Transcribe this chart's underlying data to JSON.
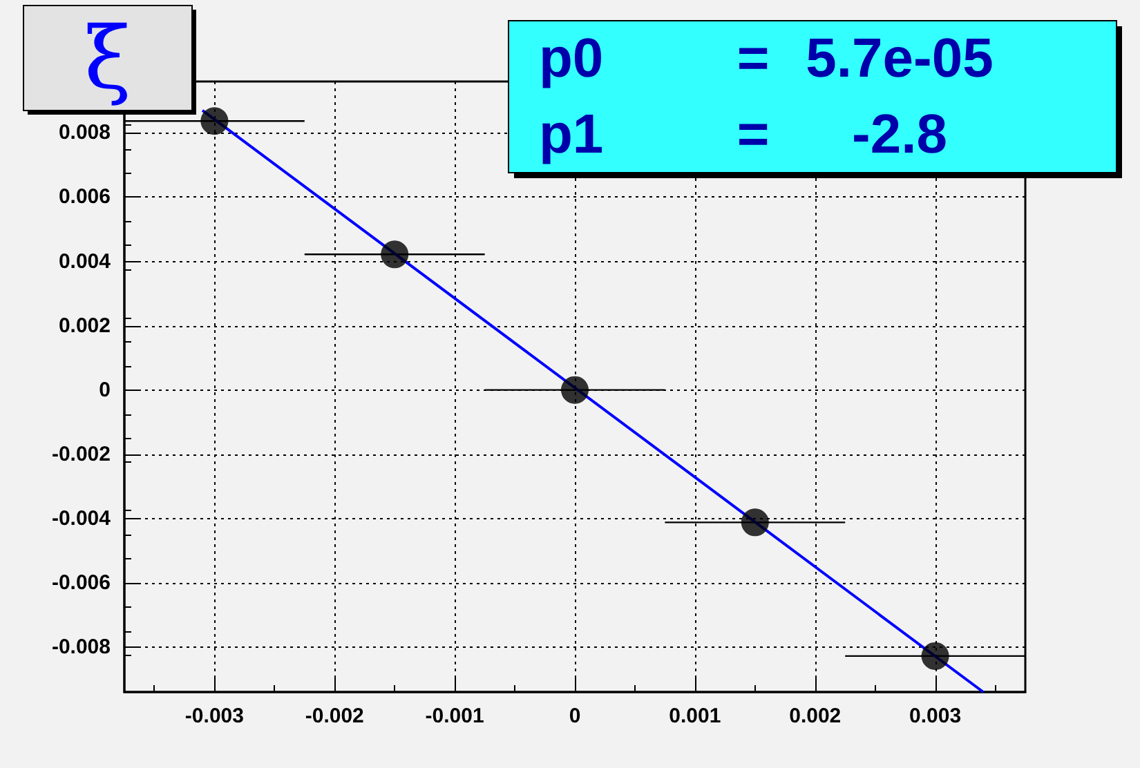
{
  "chart_data": {
    "type": "scatter",
    "title": "ξ",
    "annotations": [
      "p0 = 5.7e-05",
      "p1 = -2.8"
    ],
    "series": [
      {
        "color": "#000000",
        "x": [
          -0.003,
          -0.0015,
          0,
          0.0015,
          0.003
        ],
        "values": [
          0.00837,
          0.00422,
          0,
          -0.00412,
          -0.00828
        ],
        "xerrors": [
          0.00075,
          0.00075,
          0.00075,
          0.00075,
          0.00075
        ],
        "marker": "circle"
      },
      {
        "type": "line",
        "color": "#0000ff",
        "x": [
          -0.0031,
          0.0034
        ],
        "values": [
          0.0087,
          -0.0094
        ],
        "marker": "none",
        "line_style": "solid"
      }
    ],
    "xlim": [
      -0.00375,
      0.00375
    ],
    "xticks": [
      -0.003,
      -0.002,
      -0.001,
      0,
      0.001,
      0.002,
      0.003
    ],
    "ylim": [
      -0.0094,
      0.0096
    ],
    "yticks": [
      -0.008,
      -0.006,
      -0.004,
      -0.002,
      0,
      0.002,
      0.004,
      0.006,
      0.008
    ],
    "grid": true
  }
}
